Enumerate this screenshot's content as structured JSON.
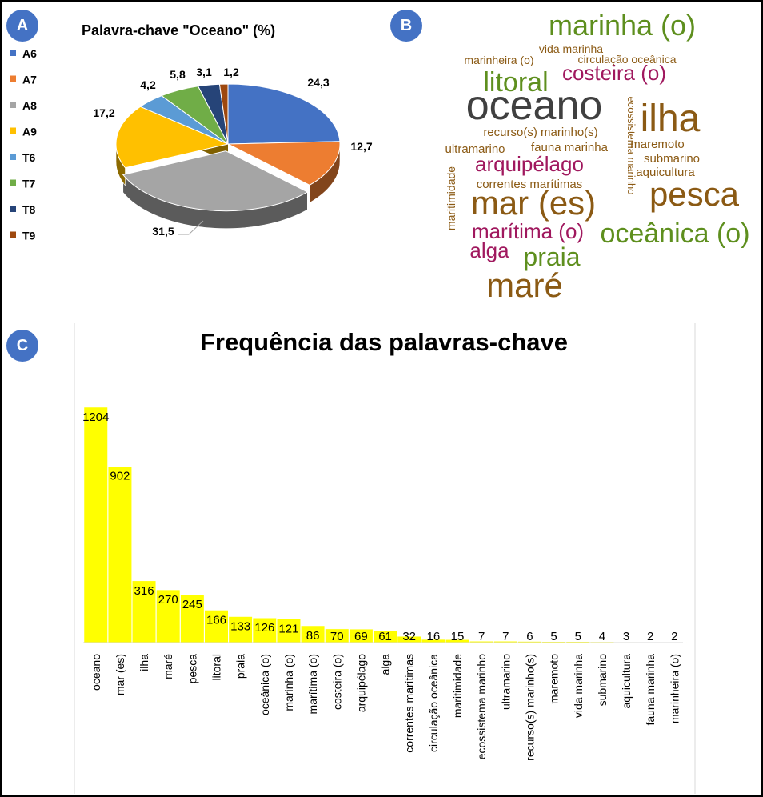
{
  "panels": {
    "a": "A",
    "b": "B",
    "c": "C"
  },
  "pie_title": "Palavra-chave \"Oceano\" (%)",
  "chart_data": [
    {
      "type": "pie",
      "title": "Palavra-chave \"Oceano\" (%)",
      "legend_position": "left",
      "categories": [
        "A6",
        "A7",
        "A8",
        "A9",
        "T6",
        "T7",
        "T8",
        "T9"
      ],
      "values": [
        24.3,
        12.7,
        31.5,
        17.2,
        4.2,
        5.8,
        3.1,
        1.2
      ],
      "value_labels": [
        "24,3",
        "12,7",
        "31,5",
        "17,2",
        "4,2",
        "5,8",
        "3,1",
        "1,2"
      ],
      "colors": [
        "#4472C4",
        "#ED7D31",
        "#A5A5A5",
        "#FFC000",
        "#5B9BD5",
        "#70AD47",
        "#264478",
        "#9E480E"
      ]
    },
    {
      "type": "bar",
      "title": "Frequência das palavras-chave",
      "xlabel": "",
      "ylabel": "",
      "grid": false,
      "bar_color": "#FFFF00",
      "categories": [
        "oceano",
        "mar (es)",
        "ilha",
        "maré",
        "pesca",
        "litoral",
        "praia",
        "oceânica (o)",
        "marinha (o)",
        "marítima (o)",
        "costeira (o)",
        "arquipélago",
        "alga",
        "correntes marítimas",
        "circulação oceânica",
        "maritimidade",
        "ecossistema marinho",
        "ultramarino",
        "recurso(s) marinho(s)",
        "maremoto",
        "vida marinha",
        "submarino",
        "aquicultura",
        "fauna marinha",
        "marinheira (o)"
      ],
      "values": [
        1204,
        902,
        316,
        270,
        245,
        166,
        133,
        126,
        121,
        86,
        70,
        69,
        61,
        32,
        16,
        15,
        7,
        7,
        6,
        5,
        5,
        4,
        3,
        2,
        2
      ]
    }
  ],
  "word_cloud": {
    "words": [
      {
        "text": "marinha (o)",
        "color": "#5E8F1E"
      },
      {
        "text": "vida marinha",
        "color": "#8B5A14"
      },
      {
        "text": "marinheira (o)",
        "color": "#8B5A14"
      },
      {
        "text": "circulação oceânica",
        "color": "#8B5A14"
      },
      {
        "text": "litoral",
        "color": "#5E8F1E"
      },
      {
        "text": "costeira (o)",
        "color": "#A0185E"
      },
      {
        "text": "oceano",
        "color": "#404040"
      },
      {
        "text": "ilha",
        "color": "#8B5A14"
      },
      {
        "text": "recurso(s) marinho(s)",
        "color": "#8B5A14"
      },
      {
        "text": "ultramarino",
        "color": "#8B5A14"
      },
      {
        "text": "fauna marinha",
        "color": "#8B5A14"
      },
      {
        "text": "maremoto",
        "color": "#8B5A14"
      },
      {
        "text": "submarino",
        "color": "#8B5A14"
      },
      {
        "text": "aquicultura",
        "color": "#8B5A14"
      },
      {
        "text": "arquipélago",
        "color": "#A0185E"
      },
      {
        "text": "correntes marítimas",
        "color": "#8B5A14"
      },
      {
        "text": "mar (es)",
        "color": "#8B5A14"
      },
      {
        "text": "pesca",
        "color": "#8B5A14"
      },
      {
        "text": "maritimidade",
        "color": "#8B5A14"
      },
      {
        "text": "ecossistema marinho",
        "color": "#8B5A14"
      },
      {
        "text": "marítima (o)",
        "color": "#A0185E"
      },
      {
        "text": "oceânica (o)",
        "color": "#5E8F1E"
      },
      {
        "text": "alga",
        "color": "#A0185E"
      },
      {
        "text": "praia",
        "color": "#5E8F1E"
      },
      {
        "text": "maré",
        "color": "#8B5A14"
      }
    ]
  }
}
